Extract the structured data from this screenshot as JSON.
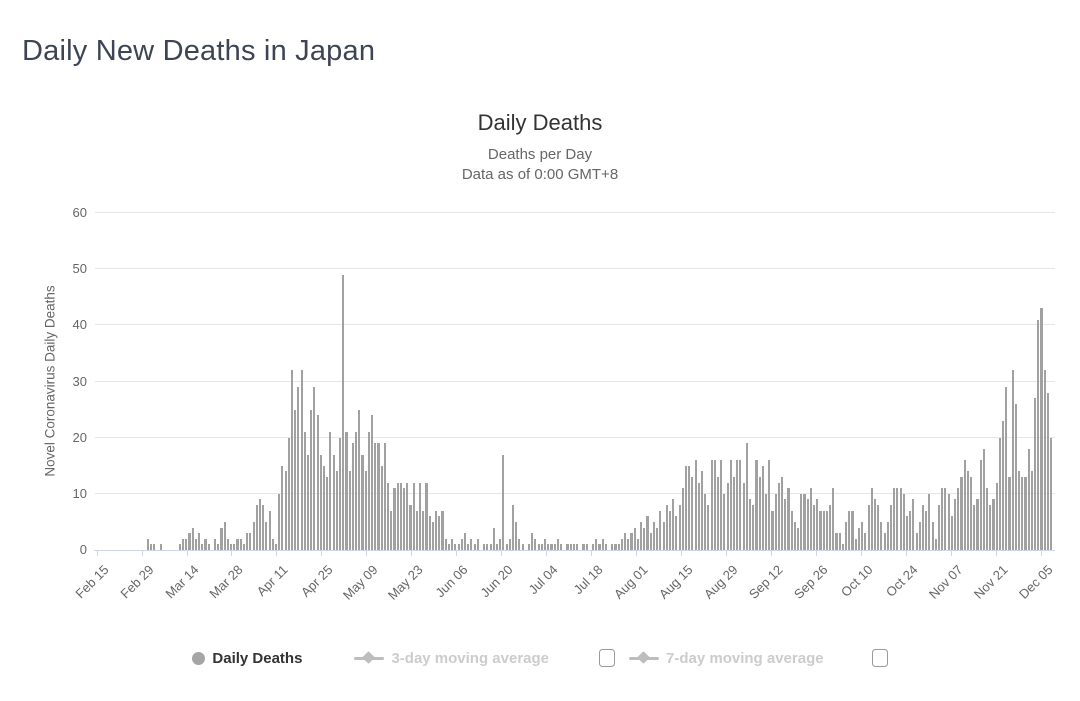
{
  "page": {
    "title": "Daily New Deaths in Japan"
  },
  "chart": {
    "title": "Daily Deaths",
    "subtitle_line1": "Deaths per Day",
    "subtitle_line2": "Data as of 0:00 GMT+8",
    "y_axis_title": "Novel Coronavirus Daily Deaths"
  },
  "legend": {
    "items": [
      {
        "label": "Daily Deaths",
        "marker": "circle-marker-icon",
        "active": true,
        "checkbox": false
      },
      {
        "label": "3-day moving average",
        "marker": "diamond-line-marker-icon",
        "active": false,
        "checkbox": true
      },
      {
        "label": "7-day moving average",
        "marker": "diamond-line-marker-icon",
        "active": false,
        "checkbox": true
      }
    ]
  },
  "colors": {
    "bar": "#a1a1a1",
    "gridline": "#e6e6e6",
    "axis_line": "#ccd6eb",
    "axis_text": "#666666",
    "chart_title": "#333333",
    "page_title": "#3d4554",
    "legend_active": "#333333",
    "legend_inactive": "#cccccc"
  },
  "chart_data": {
    "type": "bar",
    "title": "Daily Deaths",
    "subtitle": [
      "Deaths per Day",
      "Data as of 0:00 GMT+8"
    ],
    "xlabel": "",
    "ylabel": "Novel Coronavirus Daily Deaths",
    "ylim": [
      0,
      60
    ],
    "yticks": [
      0,
      10,
      20,
      30,
      40,
      50,
      60
    ],
    "grid": true,
    "legend_position": "bottom",
    "x_start_label": "Feb 15",
    "x_tick_interval_days": 14,
    "x_tick_labels": [
      "Feb 15",
      "Feb 29",
      "Mar 14",
      "Mar 28",
      "Apr 11",
      "Apr 25",
      "May 09",
      "May 23",
      "Jun 06",
      "Jun 20",
      "Jul 04",
      "Jul 18",
      "Aug 01",
      "Aug 15",
      "Aug 29",
      "Sep 12",
      "Sep 26",
      "Oct 10",
      "Oct 24",
      "Nov 07",
      "Nov 21",
      "Dec 05"
    ],
    "series": [
      {
        "name": "Daily Deaths",
        "values": [
          0,
          0,
          0,
          0,
          0,
          0,
          0,
          0,
          0,
          0,
          0,
          0,
          0,
          0,
          0,
          0,
          2,
          1,
          1,
          0,
          1,
          0,
          0,
          0,
          0,
          0,
          1,
          2,
          2,
          3,
          4,
          2,
          3,
          1,
          2,
          1,
          0,
          2,
          1,
          4,
          5,
          2,
          1,
          1,
          2,
          2,
          1,
          3,
          3,
          5,
          8,
          9,
          8,
          5,
          7,
          2,
          1,
          10,
          15,
          14,
          20,
          32,
          25,
          29,
          32,
          21,
          17,
          25,
          29,
          24,
          17,
          15,
          13,
          21,
          17,
          14,
          20,
          49,
          21,
          14,
          19,
          21,
          25,
          17,
          14,
          21,
          24,
          19,
          19,
          15,
          19,
          12,
          7,
          11,
          12,
          12,
          11,
          12,
          8,
          12,
          7,
          12,
          7,
          12,
          6,
          5,
          7,
          6,
          7,
          2,
          1,
          2,
          1,
          1,
          2,
          3,
          1,
          2,
          1,
          2,
          0,
          1,
          1,
          1,
          4,
          1,
          2,
          17,
          1,
          2,
          8,
          5,
          2,
          1,
          0,
          1,
          3,
          2,
          1,
          1,
          2,
          1,
          1,
          1,
          2,
          1,
          0,
          1,
          1,
          1,
          1,
          0,
          1,
          1,
          0,
          1,
          2,
          1,
          2,
          1,
          0,
          1,
          1,
          1,
          2,
          3,
          2,
          3,
          4,
          2,
          5,
          4,
          6,
          3,
          5,
          4,
          7,
          5,
          8,
          7,
          9,
          6,
          8,
          11,
          15,
          15,
          13,
          16,
          12,
          14,
          10,
          8,
          16,
          16,
          13,
          16,
          10,
          12,
          16,
          13,
          16,
          16,
          12,
          19,
          9,
          8,
          16,
          13,
          15,
          10,
          16,
          7,
          10,
          12,
          13,
          9,
          11,
          7,
          5,
          4,
          10,
          10,
          9,
          11,
          8,
          9,
          7,
          7,
          7,
          8,
          11,
          3,
          3,
          1,
          5,
          7,
          7,
          2,
          4,
          5,
          3,
          8,
          11,
          9,
          8,
          5,
          3,
          5,
          8,
          11,
          11,
          11,
          10,
          6,
          7,
          9,
          3,
          5,
          8,
          7,
          10,
          5,
          2,
          8,
          11,
          11,
          10,
          6,
          9,
          11,
          13,
          16,
          14,
          13,
          8,
          9,
          16,
          18,
          11,
          8,
          9,
          12,
          20,
          23,
          29,
          13,
          32,
          26,
          14,
          13,
          13,
          18,
          14,
          27,
          41,
          43,
          32,
          28,
          20
        ]
      }
    ]
  }
}
